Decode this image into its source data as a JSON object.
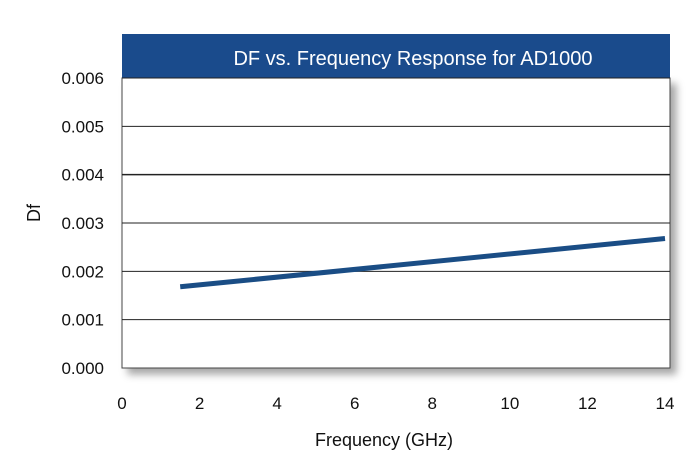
{
  "chart_data": {
    "type": "line",
    "title": "DF vs. Frequency Response for AD1000",
    "xlabel": "Frequency (GHz)",
    "ylabel": "Df",
    "xlim": [
      0,
      14
    ],
    "ylim": [
      0,
      0.006
    ],
    "x_ticks": [
      "0",
      "2",
      "4",
      "6",
      "8",
      "10",
      "12",
      "14"
    ],
    "y_ticks": [
      "0.000",
      "0.001",
      "0.002",
      "0.003",
      "0.004",
      "0.005",
      "0.006"
    ],
    "grid": "horizontal",
    "series": [
      {
        "x": [
          1.5,
          14
        ],
        "y": [
          0.00168,
          0.00268
        ],
        "color": "#1a4d85"
      }
    ],
    "colors": {
      "title_bar": "#1a4b8c",
      "line": "#1a4d85",
      "grid": "#222222"
    }
  }
}
